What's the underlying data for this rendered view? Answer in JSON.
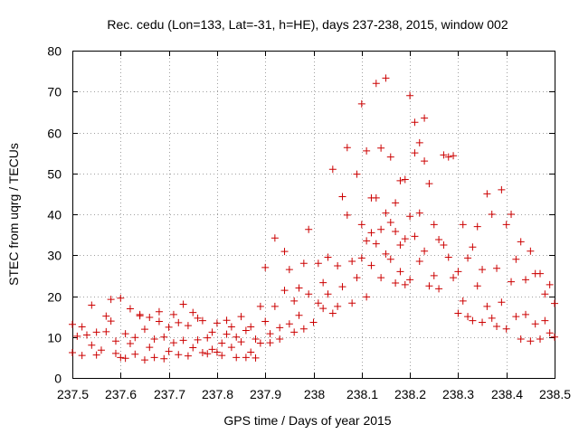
{
  "chart_data": {
    "type": "scatter",
    "title": "Rec. cedu (Lon=133, Lat=-31, h=HE), days 237-238, 2015, window 002",
    "xlabel": "GPS time / Days of year 2015",
    "ylabel": "STEC from uqrg / TECUs",
    "xlim": [
      237.5,
      238.5
    ],
    "ylim": [
      0,
      80
    ],
    "x_ticks": [
      237.5,
      237.6,
      237.7,
      237.8,
      237.9,
      238.0,
      238.1,
      238.2,
      238.3,
      238.4,
      238.5
    ],
    "x_tick_labels": [
      "237.5",
      "237.6",
      "237.7",
      "237.8",
      "237.9",
      "238",
      "238.1",
      "238.2",
      "238.3",
      "238.4",
      "238.5"
    ],
    "y_ticks": [
      0,
      10,
      20,
      30,
      40,
      50,
      60,
      70,
      80
    ],
    "y_tick_labels": [
      "0",
      "10",
      "20",
      "30",
      "40",
      "50",
      "60",
      "70",
      "80"
    ],
    "grid": true,
    "marker": "+",
    "colors": {
      "marker": "#cc0000",
      "grid": "#a0a0a0",
      "axis": "#000000"
    },
    "series": [
      {
        "name": "stec",
        "points": [
          [
            237.5,
            13.1
          ],
          [
            237.5,
            6.2
          ],
          [
            237.51,
            10.2
          ],
          [
            237.52,
            12.5
          ],
          [
            237.52,
            5.5
          ],
          [
            237.53,
            10.5
          ],
          [
            237.54,
            17.8
          ],
          [
            237.54,
            8.0
          ],
          [
            237.55,
            5.6
          ],
          [
            237.55,
            11.2
          ],
          [
            237.56,
            6.8
          ],
          [
            237.57,
            15.1
          ],
          [
            237.57,
            11.3
          ],
          [
            237.58,
            13.9
          ],
          [
            237.58,
            19.2
          ],
          [
            237.59,
            6.0
          ],
          [
            237.59,
            9.0
          ],
          [
            237.6,
            19.5
          ],
          [
            237.6,
            5.0
          ],
          [
            237.61,
            10.8
          ],
          [
            237.61,
            4.8
          ],
          [
            237.62,
            16.9
          ],
          [
            237.62,
            8.4
          ],
          [
            237.63,
            9.9
          ],
          [
            237.63,
            5.8
          ],
          [
            237.64,
            15.5
          ],
          [
            237.64,
            15.2
          ],
          [
            237.65,
            11.9
          ],
          [
            237.65,
            4.4
          ],
          [
            237.66,
            14.8
          ],
          [
            237.66,
            7.5
          ],
          [
            237.67,
            9.5
          ],
          [
            237.67,
            5.0
          ],
          [
            237.68,
            13.8
          ],
          [
            237.68,
            16.2
          ],
          [
            237.69,
            10.0
          ],
          [
            237.69,
            4.7
          ],
          [
            237.7,
            12.4
          ],
          [
            237.7,
            6.5
          ],
          [
            237.71,
            8.6
          ],
          [
            237.71,
            15.5
          ],
          [
            237.72,
            13.5
          ],
          [
            237.72,
            5.7
          ],
          [
            237.73,
            9.2
          ],
          [
            237.73,
            18.0
          ],
          [
            237.74,
            5.4
          ],
          [
            237.74,
            12.8
          ],
          [
            237.75,
            7.4
          ],
          [
            237.75,
            16.0
          ],
          [
            237.76,
            14.6
          ],
          [
            237.76,
            9.3
          ],
          [
            237.77,
            6.2
          ],
          [
            237.77,
            14.0
          ],
          [
            237.78,
            9.8
          ],
          [
            237.78,
            5.9
          ],
          [
            237.79,
            11.2
          ],
          [
            237.79,
            7.0
          ],
          [
            237.8,
            13.4
          ],
          [
            237.8,
            6.3
          ],
          [
            237.81,
            8.5
          ],
          [
            237.81,
            5.5
          ],
          [
            237.82,
            10.7
          ],
          [
            237.82,
            14.1
          ],
          [
            237.83,
            7.5
          ],
          [
            237.83,
            12.5
          ],
          [
            237.84,
            5.0
          ],
          [
            237.84,
            10.0
          ],
          [
            237.85,
            15.0
          ],
          [
            237.85,
            8.8
          ],
          [
            237.86,
            5.0
          ],
          [
            237.86,
            11.6
          ],
          [
            237.87,
            12.5
          ],
          [
            237.87,
            6.3
          ],
          [
            237.88,
            9.5
          ],
          [
            237.88,
            4.9
          ],
          [
            237.89,
            17.5
          ],
          [
            237.89,
            8.5
          ],
          [
            237.9,
            27.0
          ],
          [
            237.9,
            13.8
          ],
          [
            237.91,
            8.6
          ],
          [
            237.91,
            10.8
          ],
          [
            237.92,
            34.2
          ],
          [
            237.92,
            17.5
          ],
          [
            237.93,
            12.3
          ],
          [
            237.93,
            9.5
          ],
          [
            237.94,
            30.9
          ],
          [
            237.94,
            21.4
          ],
          [
            237.95,
            26.5
          ],
          [
            237.95,
            13.2
          ],
          [
            237.96,
            11.2
          ],
          [
            237.96,
            18.8
          ],
          [
            237.97,
            22.0
          ],
          [
            237.97,
            15.3
          ],
          [
            237.98,
            28.0
          ],
          [
            237.98,
            12.0
          ],
          [
            237.99,
            36.3
          ],
          [
            237.99,
            20.5
          ],
          [
            238.0,
            13.6
          ],
          [
            238.01,
            18.3
          ],
          [
            238.01,
            28.0
          ],
          [
            238.02,
            17.0
          ],
          [
            238.02,
            23.3
          ],
          [
            238.03,
            29.5
          ],
          [
            238.03,
            20.5
          ],
          [
            238.04,
            15.8
          ],
          [
            238.04,
            51.0
          ],
          [
            238.05,
            17.5
          ],
          [
            238.05,
            27.4
          ],
          [
            238.06,
            22.3
          ],
          [
            238.06,
            44.3
          ],
          [
            238.07,
            56.3
          ],
          [
            238.07,
            39.8
          ],
          [
            238.08,
            28.5
          ],
          [
            238.08,
            18.3
          ],
          [
            238.09,
            49.8
          ],
          [
            238.09,
            24.5
          ],
          [
            238.1,
            67.0
          ],
          [
            238.1,
            37.5
          ],
          [
            238.1,
            29.3
          ],
          [
            238.11,
            55.5
          ],
          [
            238.11,
            33.5
          ],
          [
            238.11,
            19.8
          ],
          [
            238.12,
            44.0
          ],
          [
            238.12,
            35.5
          ],
          [
            238.12,
            27.5
          ],
          [
            238.13,
            72.0
          ],
          [
            238.13,
            44.0
          ],
          [
            238.13,
            32.8
          ],
          [
            238.14,
            56.2
          ],
          [
            238.14,
            36.3
          ],
          [
            238.14,
            24.5
          ],
          [
            238.15,
            73.3
          ],
          [
            238.15,
            40.3
          ],
          [
            238.15,
            30.3
          ],
          [
            238.16,
            54.0
          ],
          [
            238.16,
            38.0
          ],
          [
            238.16,
            29.0
          ],
          [
            238.17,
            42.8
          ],
          [
            238.17,
            35.8
          ],
          [
            238.17,
            23.2
          ],
          [
            238.18,
            48.2
          ],
          [
            238.18,
            32.5
          ],
          [
            238.18,
            26.0
          ],
          [
            238.19,
            48.5
          ],
          [
            238.19,
            34.0
          ],
          [
            238.19,
            22.8
          ],
          [
            238.2,
            69.0
          ],
          [
            238.2,
            39.5
          ],
          [
            238.2,
            24.0
          ],
          [
            238.21,
            62.5
          ],
          [
            238.21,
            55.0
          ],
          [
            238.21,
            34.6
          ],
          [
            238.22,
            57.5
          ],
          [
            238.22,
            40.3
          ],
          [
            238.22,
            28.5
          ],
          [
            238.23,
            63.5
          ],
          [
            238.23,
            53.0
          ],
          [
            238.23,
            31.0
          ],
          [
            238.24,
            47.5
          ],
          [
            238.24,
            22.5
          ],
          [
            238.25,
            37.5
          ],
          [
            238.25,
            25.0
          ],
          [
            238.26,
            33.8
          ],
          [
            238.26,
            21.8
          ],
          [
            238.27,
            54.5
          ],
          [
            238.27,
            32.5
          ],
          [
            238.28,
            54.0
          ],
          [
            238.28,
            29.5
          ],
          [
            238.29,
            54.3
          ],
          [
            238.29,
            24.5
          ],
          [
            238.3,
            26.0
          ],
          [
            238.3,
            15.8
          ],
          [
            238.31,
            37.5
          ],
          [
            238.31,
            18.8
          ],
          [
            238.32,
            29.3
          ],
          [
            238.32,
            15.0
          ],
          [
            238.33,
            32.0
          ],
          [
            238.33,
            14.0
          ],
          [
            238.34,
            37.0
          ],
          [
            238.34,
            22.5
          ],
          [
            238.35,
            26.5
          ],
          [
            238.35,
            13.6
          ],
          [
            238.36,
            45.0
          ],
          [
            238.36,
            17.5
          ],
          [
            238.37,
            40.0
          ],
          [
            238.37,
            14.6
          ],
          [
            238.38,
            26.8
          ],
          [
            238.38,
            12.6
          ],
          [
            238.39,
            46.0
          ],
          [
            238.39,
            18.5
          ],
          [
            238.4,
            37.5
          ],
          [
            238.4,
            12.0
          ],
          [
            238.41,
            40.0
          ],
          [
            238.41,
            23.5
          ],
          [
            238.42,
            29.0
          ],
          [
            238.42,
            15.0
          ],
          [
            238.43,
            33.3
          ],
          [
            238.43,
            9.5
          ],
          [
            238.44,
            24.0
          ],
          [
            238.44,
            15.5
          ],
          [
            238.45,
            31.0
          ],
          [
            238.45,
            9.0
          ],
          [
            238.46,
            25.5
          ],
          [
            238.46,
            13.2
          ],
          [
            238.47,
            25.5
          ],
          [
            238.47,
            9.5
          ],
          [
            238.48,
            20.5
          ],
          [
            238.48,
            14.0
          ],
          [
            238.49,
            22.8
          ],
          [
            238.49,
            11.0
          ],
          [
            238.5,
            18.2
          ],
          [
            238.5,
            10.0
          ]
        ]
      }
    ]
  }
}
